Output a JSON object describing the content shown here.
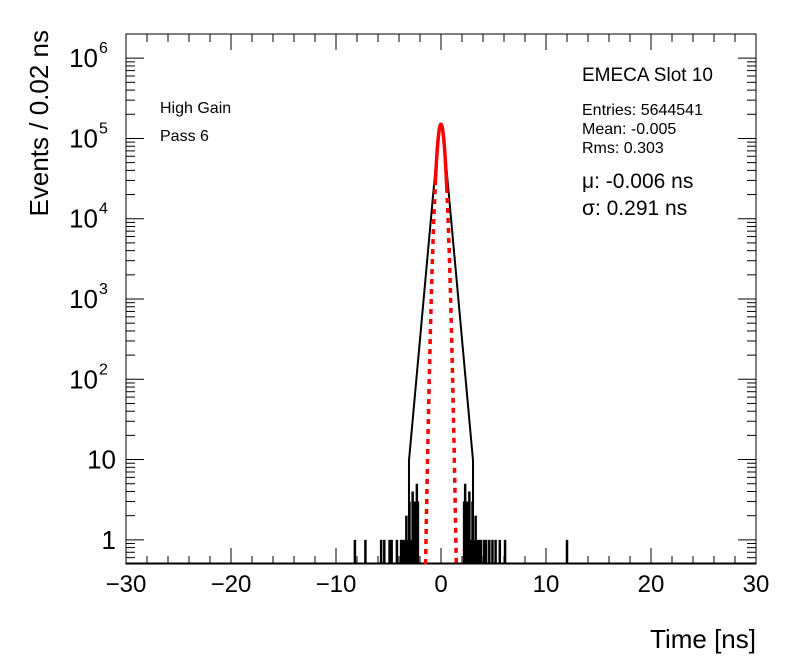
{
  "chart_data": {
    "type": "histogram",
    "xlabel": "Time [ns]",
    "ylabel": "Events / 0.02 ns",
    "xlim": [
      -30,
      30
    ],
    "ylim": [
      0.5,
      2000000
    ],
    "yscale": "log",
    "x_ticks": [
      -30,
      -20,
      -10,
      0,
      10,
      20,
      30
    ],
    "x_tick_labels": [
      "−30",
      "−20",
      "−10",
      "0",
      "10",
      "20",
      "30"
    ],
    "y_ticks": [
      {
        "value": 1,
        "base": "1",
        "exp": ""
      },
      {
        "value": 10,
        "base": "10",
        "exp": ""
      },
      {
        "value": 100,
        "base": "10",
        "exp": "2"
      },
      {
        "value": 1000,
        "base": "10",
        "exp": "3"
      },
      {
        "value": 10000,
        "base": "10",
        "exp": "4"
      },
      {
        "value": 100000,
        "base": "10",
        "exp": "5"
      },
      {
        "value": 1000000,
        "base": "10",
        "exp": "6"
      }
    ],
    "left_annotations": [
      "High Gain",
      "Pass 6"
    ],
    "title": "EMECA Slot 10",
    "stats": [
      "Entries: 5644541",
      "Mean: -0.005",
      "Rms: 0.303"
    ],
    "fit_results": [
      "μ: -0.006 ns",
      "σ: 0.291 ns"
    ],
    "histogram": {
      "color": "#000000",
      "peak": 150000,
      "core_sigma": 0.291,
      "tail_decades_per_ns": 1.44,
      "tail_floor": 10,
      "spikes": [
        {
          "x": -8.2,
          "y": 1
        },
        {
          "x": -7.2,
          "y": 1
        },
        {
          "x": -5.7,
          "y": 1
        },
        {
          "x": -5.4,
          "y": 1
        },
        {
          "x": -4.9,
          "y": 1
        },
        {
          "x": -4.7,
          "y": 1
        },
        {
          "x": -4.2,
          "y": 1
        },
        {
          "x": -3.8,
          "y": 1
        },
        {
          "x": -3.6,
          "y": 1
        },
        {
          "x": -3.4,
          "y": 1
        },
        {
          "x": -3.3,
          "y": 2
        },
        {
          "x": -3.1,
          "y": 1
        },
        {
          "x": -3.0,
          "y": 3
        },
        {
          "x": -2.9,
          "y": 1
        },
        {
          "x": -2.7,
          "y": 4
        },
        {
          "x": -2.6,
          "y": 2
        },
        {
          "x": -2.5,
          "y": 3
        },
        {
          "x": -2.4,
          "y": 2
        },
        {
          "x": -2.3,
          "y": 5
        },
        {
          "x": -2.2,
          "y": 3
        },
        {
          "x": 2.2,
          "y": 3
        },
        {
          "x": 2.3,
          "y": 5
        },
        {
          "x": 2.4,
          "y": 2
        },
        {
          "x": 2.5,
          "y": 3
        },
        {
          "x": 2.6,
          "y": 2
        },
        {
          "x": 2.7,
          "y": 4
        },
        {
          "x": 2.9,
          "y": 1
        },
        {
          "x": 3.0,
          "y": 3
        },
        {
          "x": 3.1,
          "y": 1
        },
        {
          "x": 3.3,
          "y": 2
        },
        {
          "x": 3.4,
          "y": 1
        },
        {
          "x": 3.6,
          "y": 1
        },
        {
          "x": 3.8,
          "y": 1
        },
        {
          "x": 4.1,
          "y": 1
        },
        {
          "x": 4.3,
          "y": 1
        },
        {
          "x": 4.6,
          "y": 1
        },
        {
          "x": 4.9,
          "y": 1
        },
        {
          "x": 5.2,
          "y": 1
        },
        {
          "x": 5.6,
          "y": 1
        },
        {
          "x": 6.1,
          "y": 1
        },
        {
          "x": 12.0,
          "y": 1
        }
      ]
    },
    "fit": {
      "type": "gaussian",
      "mean": -0.006,
      "sigma": 0.291,
      "amplitude": 150000,
      "solid_range": [
        -0.55,
        0.55
      ],
      "color": "#ff0000"
    }
  }
}
